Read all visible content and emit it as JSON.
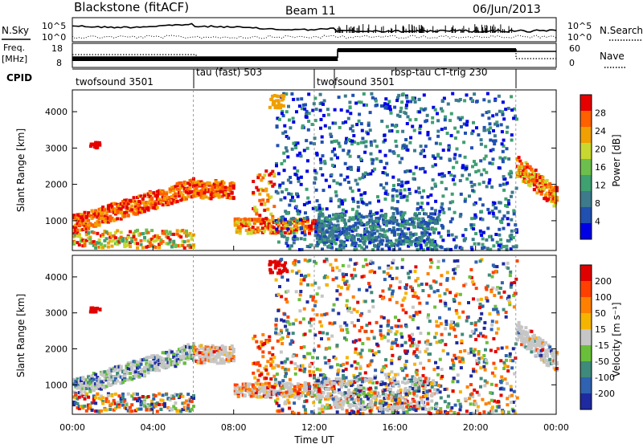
{
  "header": {
    "site": "Blackstone (fitACF)",
    "beam": "Beam 11",
    "date": "06/Jun/2013"
  },
  "top_panels": {
    "nsky_label": "N.Sky",
    "nsearch_label": "N.Search",
    "noise_ticks": [
      "10^5",
      "10^0"
    ],
    "freq_label": "Freq.",
    "freq_unit": "[MHz]",
    "freq_ticks": [
      "18",
      "8"
    ],
    "nave_label": "Nave",
    "nave_ticks": [
      "60",
      "0"
    ],
    "cpid_label": "CPID"
  },
  "cpid_segments": [
    {
      "name": "twofsound 3501",
      "start_hour": 0,
      "end_hour": 6
    },
    {
      "name": "tau (fast) 503",
      "start_hour": 6,
      "end_hour": 12
    },
    {
      "name": "twofsound 3501",
      "start_hour": 12,
      "end_hour": 13
    },
    {
      "name": "rbsp-tau CT-trig 230",
      "start_hour": 13,
      "end_hour": 22
    }
  ],
  "chart_data": [
    {
      "type": "heatmap",
      "name": "power",
      "ylabel": "Slant Range [km]",
      "y_ticks": [
        "4000",
        "3000",
        "2000",
        "1000"
      ],
      "ylim": [
        180,
        4600
      ],
      "x_ticks": [
        "00:00",
        "04:00",
        "08:00",
        "12:00",
        "16:00",
        "20:00",
        "00:00"
      ],
      "xlim_hours": [
        0,
        24
      ],
      "colorbar_label": "Power [dB]",
      "colorbar_ticks": [
        "28",
        "24",
        "20",
        "16",
        "12",
        "8",
        "4"
      ],
      "colorbar_range": [
        0,
        32
      ],
      "colors": [
        "#0000e6",
        "#2050b0",
        "#3c7a8c",
        "#3fa070",
        "#6cbf4a",
        "#c8d830",
        "#f0a000",
        "#ff6000",
        "#e60000"
      ]
    },
    {
      "type": "heatmap",
      "name": "velocity",
      "ylabel": "Slant Range [km]",
      "y_ticks": [
        "4000",
        "3000",
        "2000",
        "1000"
      ],
      "ylim": [
        180,
        4600
      ],
      "x_ticks": [
        "00:00",
        "04:00",
        "08:00",
        "12:00",
        "16:00",
        "20:00",
        "00:00"
      ],
      "xlabel": "Time UT",
      "xlim_hours": [
        0,
        24
      ],
      "colorbar_label": "Velocity [m s⁻¹]",
      "colorbar_ticks": [
        "200",
        "100",
        "50",
        "15",
        "-15",
        "-50",
        "-100",
        "-200"
      ],
      "colors": [
        "#1e2aa0",
        "#2f62b0",
        "#3f8a7a",
        "#6abf3a",
        "#c6c6c6",
        "#f5b400",
        "#ff8000",
        "#ff4000",
        "#e00000"
      ]
    }
  ]
}
